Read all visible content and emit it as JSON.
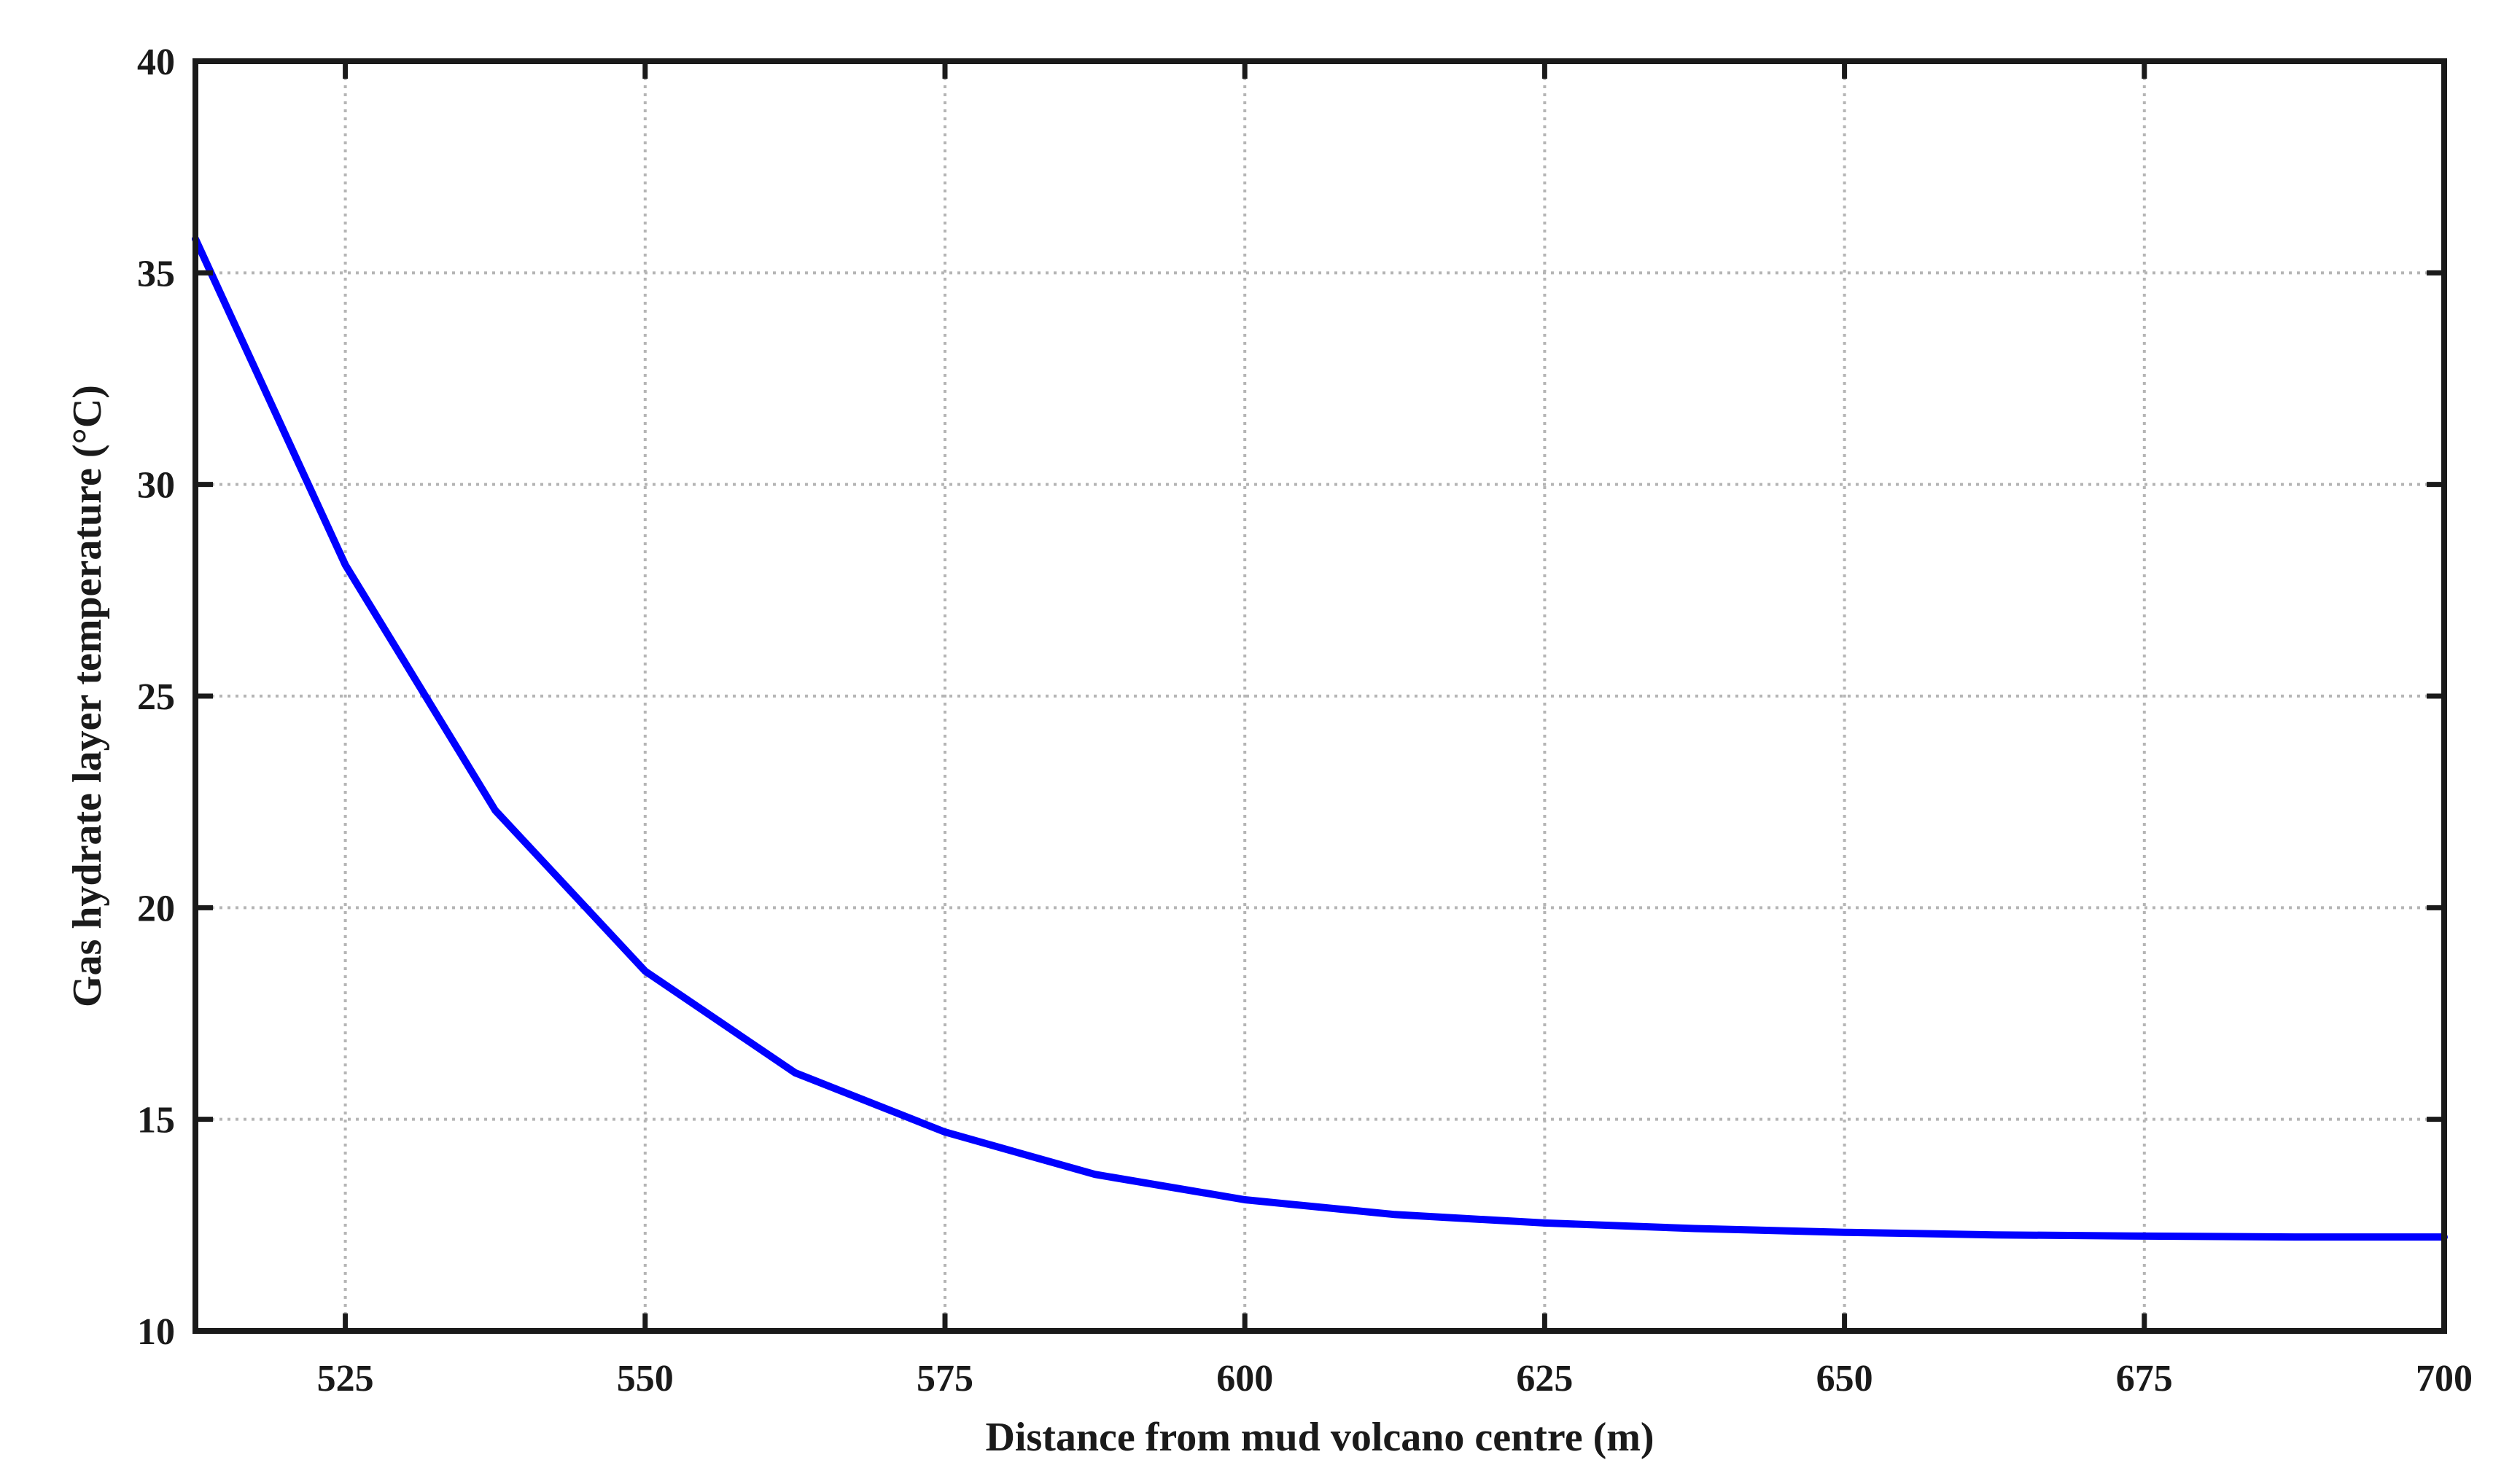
{
  "chart_data": {
    "type": "line",
    "title": "",
    "xlabel": "Distance from mud volcano centre (m)",
    "ylabel": "Gas hydrate layer temperature (°C)",
    "xlim": [
      512.5,
      700
    ],
    "ylim": [
      10,
      40
    ],
    "xticks": [
      525,
      550,
      575,
      600,
      625,
      650,
      675,
      700
    ],
    "yticks": [
      10,
      15,
      20,
      25,
      30,
      35,
      40
    ],
    "grid": true,
    "legend": "none",
    "series": [
      {
        "color": "#0000ff",
        "x": [
          512.5,
          525,
          537.5,
          550,
          562.5,
          575,
          587.5,
          600,
          612.5,
          625,
          637.5,
          650,
          662.5,
          675,
          687.5,
          700
        ],
        "y": [
          35.8,
          28.1,
          22.3,
          18.5,
          16.1,
          14.7,
          13.7,
          13.1,
          12.75,
          12.55,
          12.42,
          12.33,
          12.27,
          12.24,
          12.22,
          12.22
        ]
      }
    ]
  }
}
